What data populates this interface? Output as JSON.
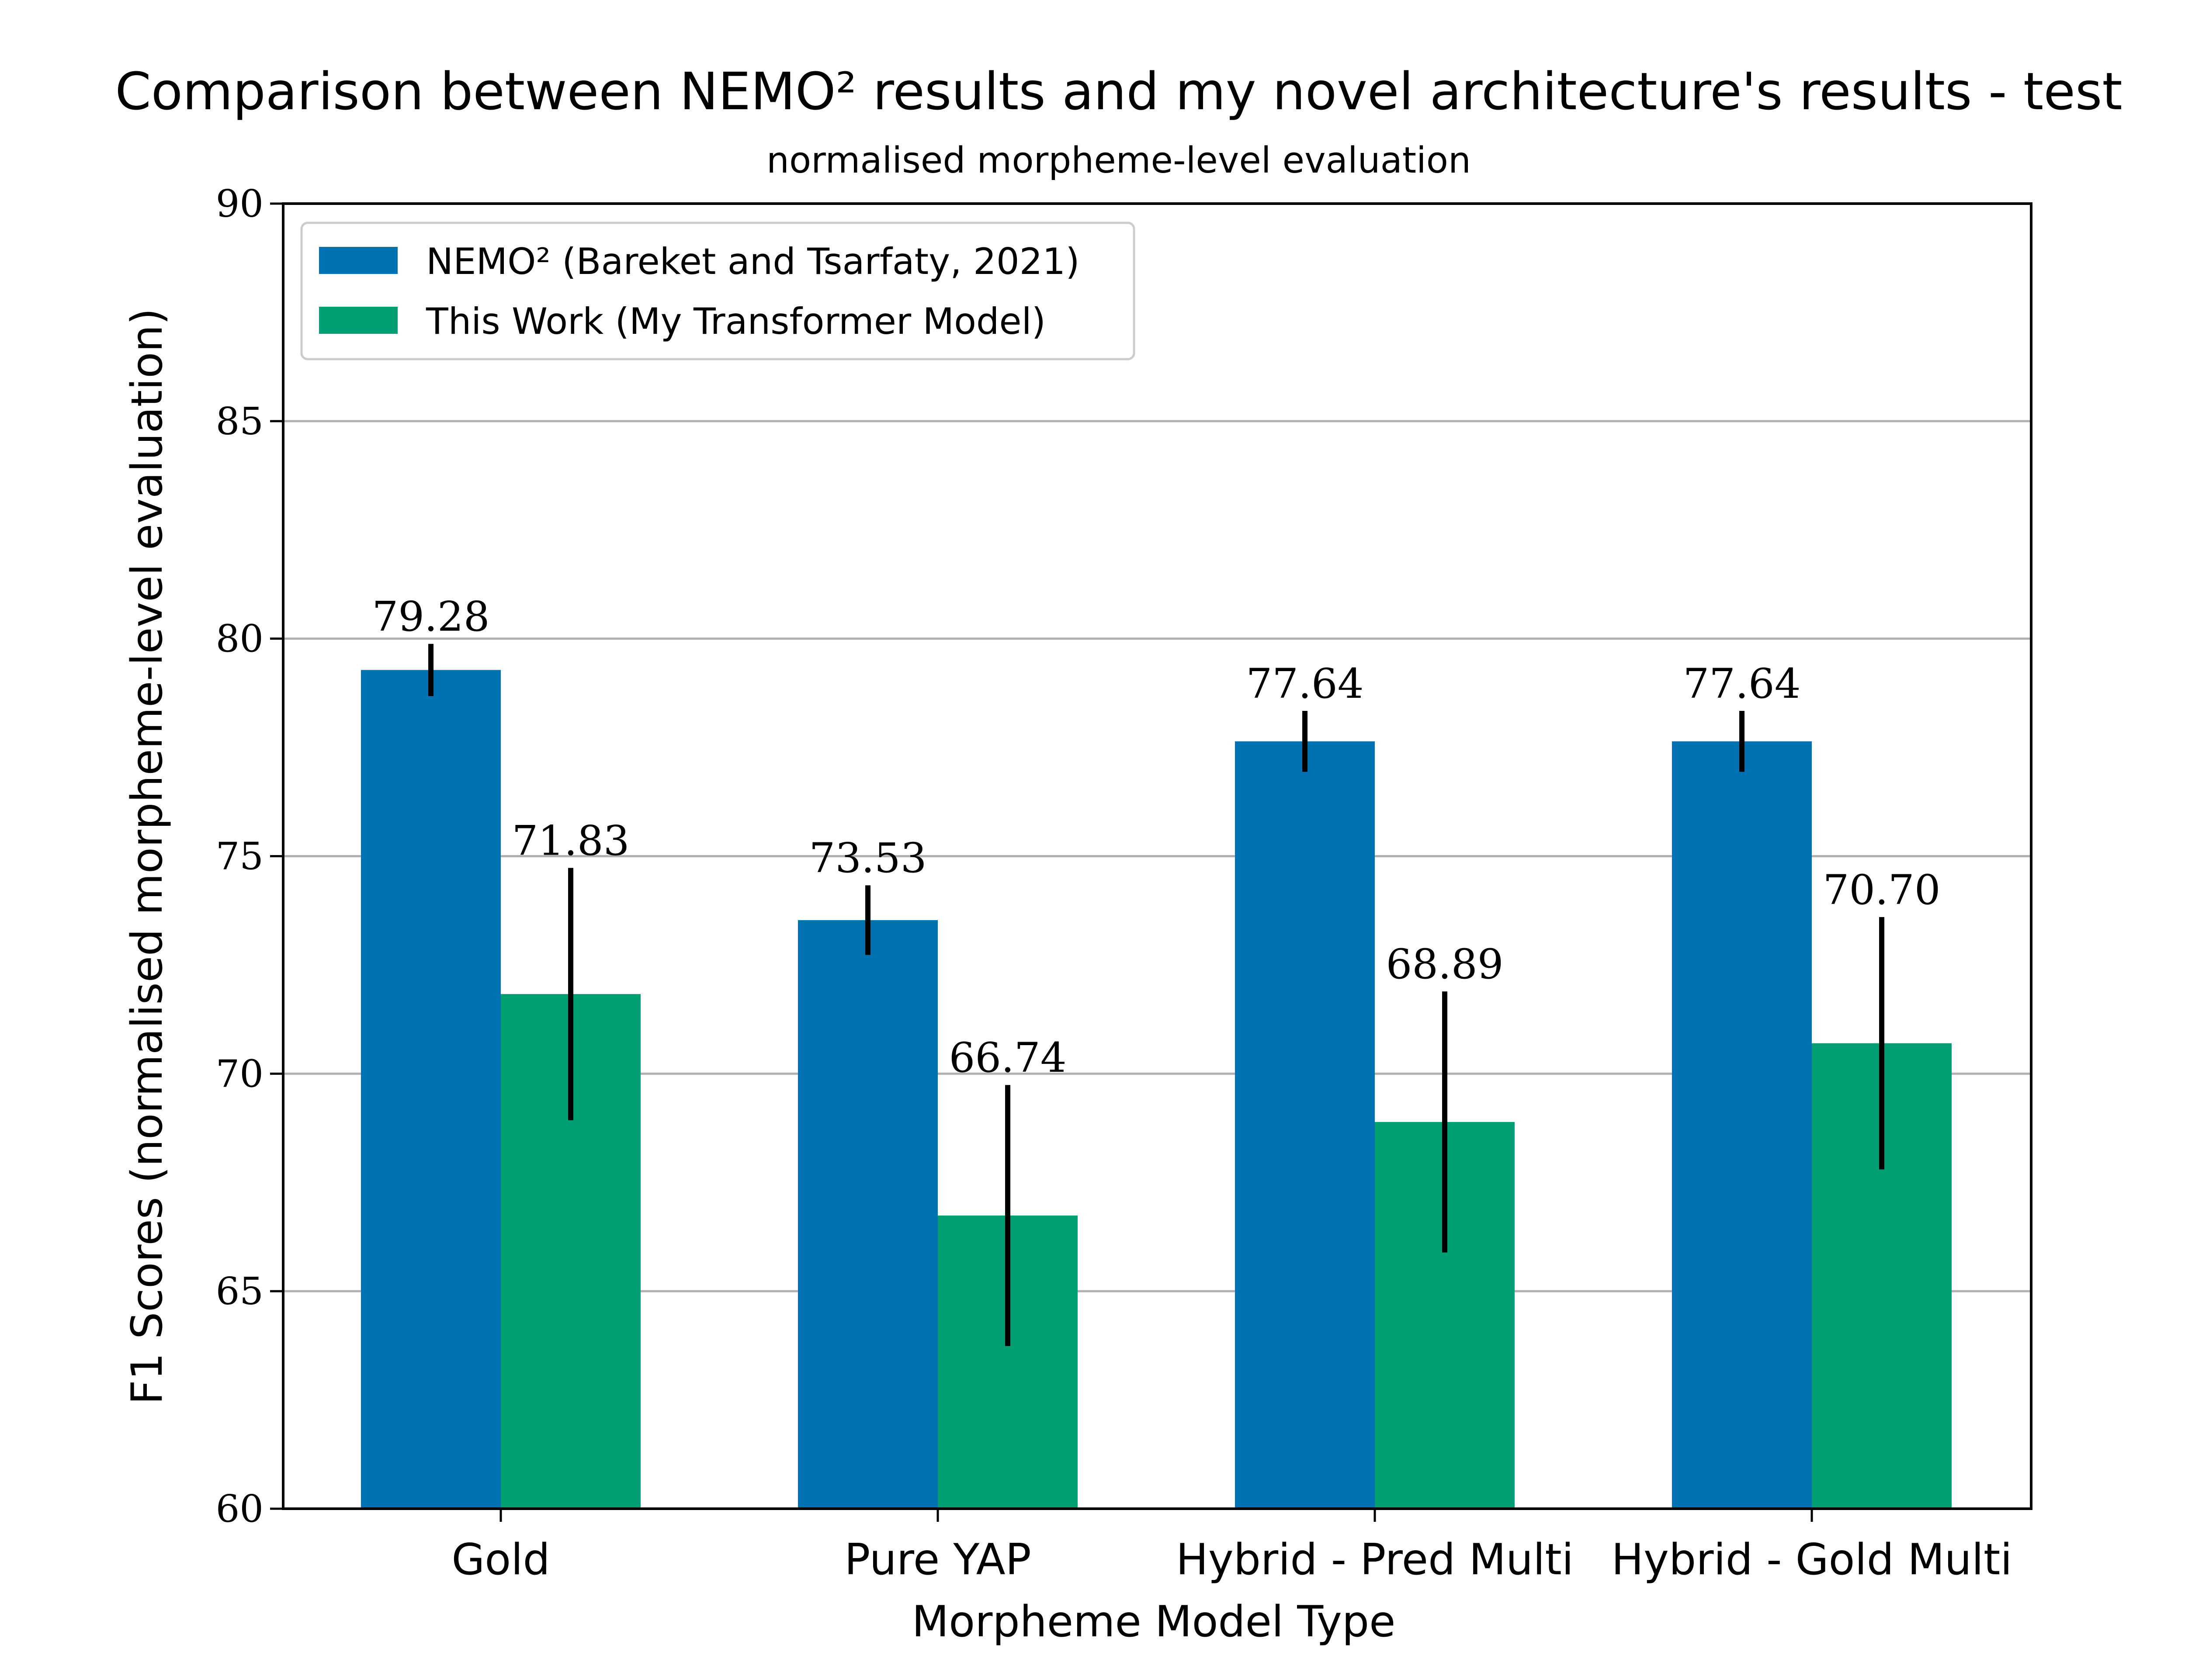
{
  "chart_data": {
    "type": "bar",
    "title": "Comparison between NEMO² results and my novel architecture's results - test",
    "subtitle": "normalised morpheme-level evaluation",
    "xlabel": "Morpheme Model Type",
    "ylabel": "F1 Scores (normalised morpheme-level evaluation)",
    "ylim": [
      60,
      90
    ],
    "yticks": [
      60,
      65,
      70,
      75,
      80,
      85,
      90
    ],
    "categories": [
      "Gold",
      "Pure YAP",
      "Hybrid - Pred Multi",
      "Hybrid - Gold Multi"
    ],
    "grid": "horizontal",
    "legend_position": "top-left",
    "series": [
      {
        "name": "NEMO² (Bareket and Tsarfaty, 2021)",
        "color": "#0072B2",
        "values": [
          79.28,
          73.53,
          77.64,
          77.64
        ],
        "labels": [
          "79.28",
          "73.53",
          "77.64",
          "77.64"
        ],
        "error": [
          0.6,
          0.8,
          0.7,
          0.7
        ]
      },
      {
        "name": "This Work (My Transformer Model)",
        "color": "#009E73",
        "values": [
          71.83,
          66.74,
          68.89,
          70.7
        ],
        "labels": [
          "71.83",
          "66.74",
          "68.89",
          "70.70"
        ],
        "error": [
          2.9,
          3.0,
          3.0,
          2.9
        ]
      }
    ]
  }
}
